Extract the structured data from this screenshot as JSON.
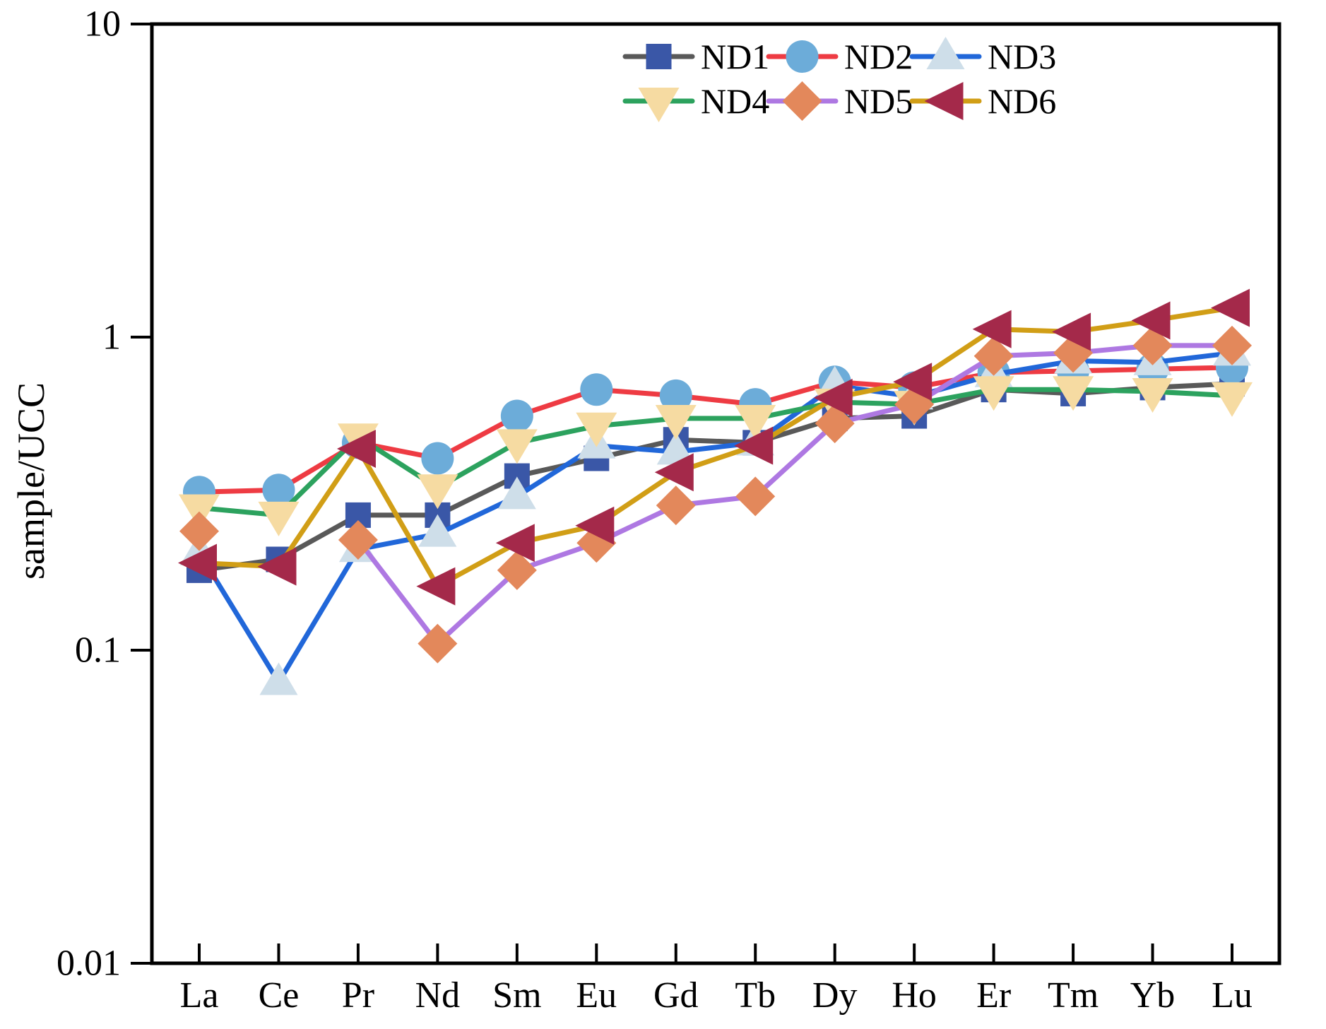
{
  "figure": {
    "background": "#ffffff",
    "axis_color": "#000000",
    "text_color": "#000000"
  },
  "chart_data": {
    "type": "line",
    "title": "",
    "xlabel": "",
    "ylabel": "sample/UCC",
    "y_scale": "log",
    "ylim": [
      0.01,
      10
    ],
    "grid": false,
    "legend_position": "top-right, two rows inside plot",
    "yticks": [
      {
        "value": 10,
        "label": "10"
      },
      {
        "value": 1,
        "label": "1"
      },
      {
        "value": 0.1,
        "label": "0.1"
      },
      {
        "value": 0.01,
        "label": "0.01"
      }
    ],
    "categories": [
      "La",
      "Ce",
      "Pr",
      "Nd",
      "Sm",
      "Eu",
      "Gd",
      "Tb",
      "Dy",
      "Ho",
      "Er",
      "Tm",
      "Yb",
      "Lu"
    ],
    "series": [
      {
        "name": "ND1",
        "line_color": "#595959",
        "marker": "square",
        "marker_color": "#3A57A7",
        "values": [
          0.18,
          0.195,
          0.27,
          0.27,
          0.36,
          0.41,
          0.47,
          0.46,
          0.55,
          0.56,
          0.68,
          0.66,
          0.69,
          0.71
        ]
      },
      {
        "name": "ND2",
        "line_color": "#EE3B43",
        "marker": "circle",
        "marker_color": "#6CACD9",
        "values": [
          0.32,
          0.325,
          0.46,
          0.41,
          0.56,
          0.68,
          0.65,
          0.61,
          0.72,
          0.69,
          0.77,
          0.78,
          0.79,
          0.8
        ]
      },
      {
        "name": "ND3",
        "line_color": "#2167D9",
        "marker": "triangle-up",
        "marker_color": "#CEDEE9",
        "values": [
          0.205,
          0.079,
          0.21,
          0.235,
          0.31,
          0.45,
          0.43,
          0.46,
          0.7,
          0.645,
          0.76,
          0.84,
          0.83,
          0.89
        ]
      },
      {
        "name": "ND4",
        "line_color": "#2CA25E",
        "marker": "triangle-down",
        "marker_color": "#F6DBA2",
        "values": [
          0.285,
          0.27,
          0.48,
          0.33,
          0.46,
          0.52,
          0.55,
          0.55,
          0.62,
          0.61,
          0.68,
          0.68,
          0.67,
          0.65
        ]
      },
      {
        "name": "ND5",
        "line_color": "#AE78E2",
        "marker": "diamond",
        "marker_color": "#E3885B",
        "values": [
          0.24,
          null,
          0.225,
          0.105,
          0.18,
          0.22,
          0.29,
          0.31,
          0.53,
          0.61,
          0.87,
          0.89,
          0.94,
          0.94
        ]
      },
      {
        "name": "ND6",
        "line_color": "#D19E16",
        "marker": "triangle-left",
        "marker_color": "#A4294A",
        "values": [
          0.19,
          0.185,
          0.44,
          0.16,
          0.22,
          0.25,
          0.37,
          0.45,
          0.64,
          0.72,
          1.06,
          1.04,
          1.13,
          1.24
        ]
      }
    ]
  }
}
